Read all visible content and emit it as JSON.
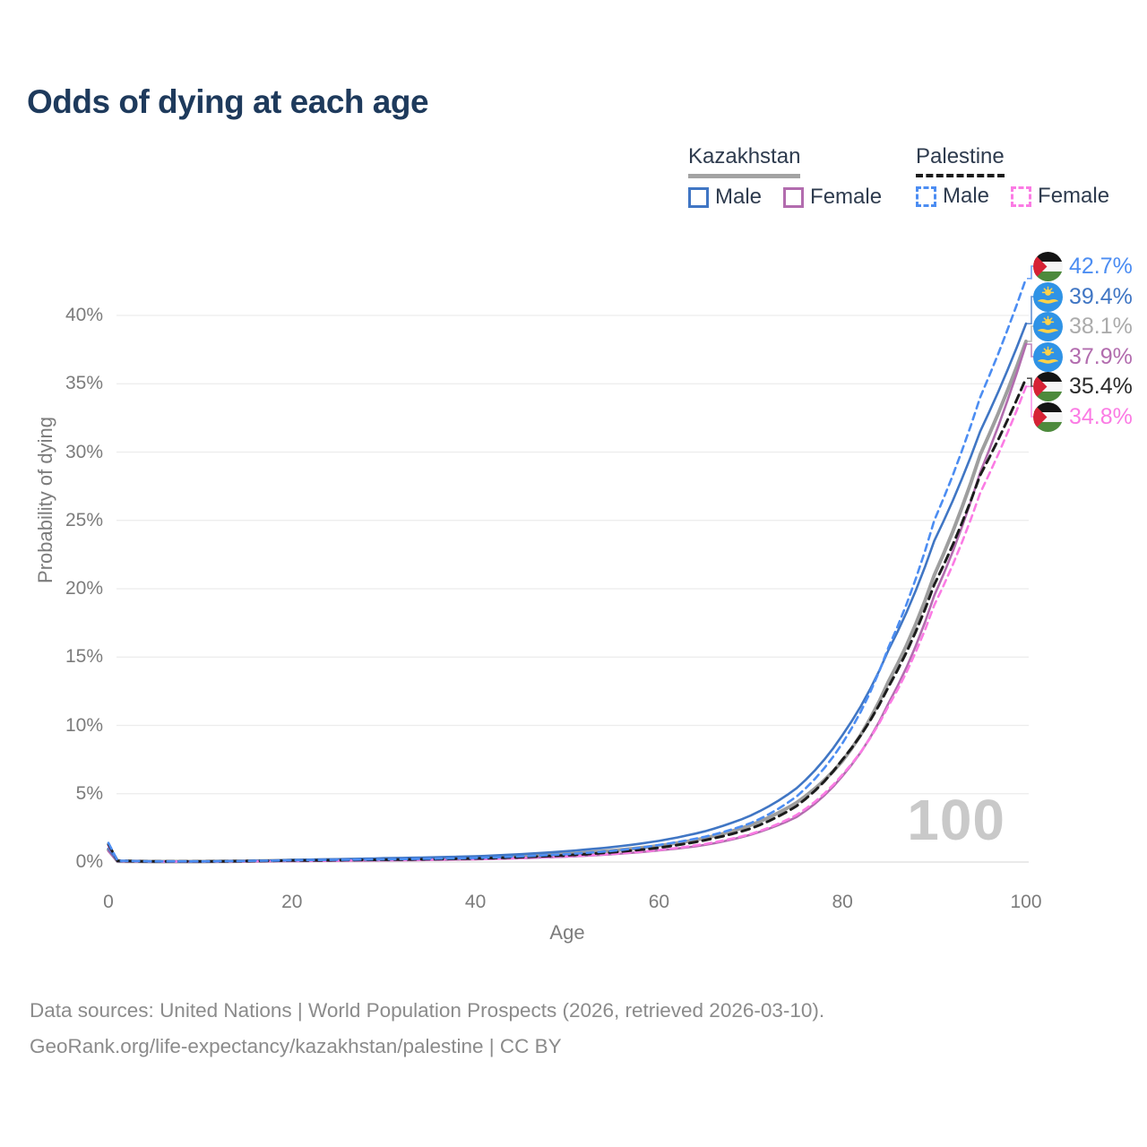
{
  "page": {
    "title": "Odds of dying at each age",
    "watermark": "100"
  },
  "footer": {
    "line1": "Data sources: United Nations | World Population Prospects (2026, retrieved 2026-03-10).",
    "line2": "GeoRank.org/life-expectancy/kazakhstan/palestine | CC BY"
  },
  "legend": {
    "groups": [
      {
        "label": "Kazakhstan",
        "style": "solid",
        "line_color": "#a3a3a3",
        "items": [
          {
            "label": "Male",
            "color": "#4076c4",
            "style": "solid"
          },
          {
            "label": "Female",
            "color": "#b26cae",
            "style": "solid"
          }
        ]
      },
      {
        "label": "Palestine",
        "style": "dashed",
        "line_color": "#1c1c1c",
        "items": [
          {
            "label": "Male",
            "color": "#4c8df2",
            "style": "dashed"
          },
          {
            "label": "Female",
            "color": "#fb7be4",
            "style": "dashed"
          }
        ]
      }
    ]
  },
  "chart_data": {
    "type": "line",
    "title": "Odds of dying at each age",
    "xlabel": "Age",
    "ylabel": "Probability of dying",
    "xlim": [
      0,
      100
    ],
    "ylim": [
      0,
      44
    ],
    "grid": true,
    "xticks": [
      {
        "value": 0,
        "label": "0"
      },
      {
        "value": 20,
        "label": "20"
      },
      {
        "value": 40,
        "label": "40"
      },
      {
        "value": 60,
        "label": "60"
      },
      {
        "value": 80,
        "label": "80"
      },
      {
        "value": 100,
        "label": "100"
      }
    ],
    "yticks": [
      {
        "value": 0,
        "label": "0%"
      },
      {
        "value": 5,
        "label": "5%"
      },
      {
        "value": 10,
        "label": "10%"
      },
      {
        "value": 15,
        "label": "15%"
      },
      {
        "value": 20,
        "label": "20%"
      },
      {
        "value": 25,
        "label": "25%"
      },
      {
        "value": 30,
        "label": "30%"
      },
      {
        "value": 35,
        "label": "35%"
      },
      {
        "value": 40,
        "label": "40%"
      }
    ],
    "series": [
      {
        "id": "kazakhstan-both",
        "name": "Kazakhstan (both sexes)",
        "flag": "kz",
        "color": "#9e9e9e",
        "dash": false,
        "width": 4,
        "slot": 2,
        "end_label": "38.1%",
        "label_color": "#ababab",
        "end_value": 38.1,
        "x": [
          0,
          1,
          5,
          10,
          20,
          30,
          40,
          50,
          55,
          60,
          65,
          70,
          75,
          80,
          85,
          90,
          95,
          100
        ],
        "y": [
          0.9,
          0.06,
          0.035,
          0.035,
          0.12,
          0.2,
          0.31,
          0.6,
          0.84,
          1.2,
          1.75,
          2.7,
          4.35,
          7.4,
          13.2,
          21.0,
          29.8,
          38.1
        ]
      },
      {
        "id": "kazakhstan-female",
        "name": "Kazakhstan Female",
        "flag": "kz",
        "color": "#b26cae",
        "dash": false,
        "width": 2.6,
        "slot": 3,
        "end_label": "37.9%",
        "label_color": "#b26cae",
        "end_value": 37.9,
        "x": [
          0,
          1,
          5,
          10,
          20,
          30,
          40,
          50,
          55,
          60,
          65,
          70,
          75,
          80,
          85,
          90,
          95,
          100
        ],
        "y": [
          0.8,
          0.05,
          0.03,
          0.03,
          0.07,
          0.12,
          0.2,
          0.4,
          0.58,
          0.85,
          1.25,
          2.0,
          3.3,
          6.3,
          11.6,
          19.5,
          28.5,
          37.9
        ]
      },
      {
        "id": "kazakhstan-male",
        "name": "Kazakhstan Male",
        "flag": "kz",
        "color": "#4076c4",
        "dash": false,
        "width": 2.6,
        "slot": 1,
        "end_label": "39.4%",
        "label_color": "#4076c4",
        "end_value": 39.4,
        "x": [
          0,
          1,
          5,
          10,
          20,
          30,
          40,
          50,
          55,
          60,
          65,
          70,
          75,
          80,
          85,
          90,
          95,
          100
        ],
        "y": [
          1.0,
          0.07,
          0.04,
          0.04,
          0.16,
          0.28,
          0.42,
          0.8,
          1.1,
          1.55,
          2.25,
          3.4,
          5.4,
          9.3,
          15.5,
          23.5,
          31.5,
          39.4
        ]
      },
      {
        "id": "palestine-female",
        "name": "Palestine Female",
        "flag": "ps",
        "color": "#fb7be4",
        "dash": true,
        "width": 2.6,
        "slot": 5,
        "end_label": "34.8%",
        "label_color": "#fb7be4",
        "end_value": 34.8,
        "x": [
          0,
          1,
          5,
          10,
          20,
          30,
          40,
          50,
          55,
          60,
          65,
          70,
          75,
          80,
          85,
          90,
          95,
          100
        ],
        "y": [
          1.2,
          0.08,
          0.04,
          0.04,
          0.08,
          0.13,
          0.21,
          0.42,
          0.6,
          0.88,
          1.32,
          2.05,
          3.45,
          6.4,
          11.4,
          18.8,
          27.0,
          34.8
        ]
      },
      {
        "id": "palestine-both",
        "name": "Palestine (both sexes)",
        "flag": "ps",
        "color": "#1c1c1c",
        "dash": true,
        "width": 3,
        "slot": 4,
        "end_label": "35.4%",
        "label_color": "#2b2b2b",
        "end_value": 35.4,
        "x": [
          0,
          1,
          5,
          10,
          20,
          30,
          40,
          50,
          55,
          60,
          65,
          70,
          75,
          80,
          85,
          90,
          95,
          100
        ],
        "y": [
          1.3,
          0.09,
          0.045,
          0.045,
          0.11,
          0.17,
          0.26,
          0.5,
          0.72,
          1.05,
          1.6,
          2.45,
          4.1,
          7.5,
          12.8,
          20.3,
          28.3,
          35.4
        ]
      },
      {
        "id": "palestine-male",
        "name": "Palestine Male",
        "flag": "ps",
        "color": "#4c8df2",
        "dash": true,
        "width": 2.6,
        "slot": 0,
        "end_label": "42.7%",
        "label_color": "#4c8df2",
        "end_value": 42.7,
        "x": [
          0,
          1,
          5,
          10,
          20,
          30,
          40,
          50,
          55,
          60,
          65,
          70,
          75,
          80,
          85,
          90,
          95,
          100
        ],
        "y": [
          1.4,
          0.1,
          0.05,
          0.05,
          0.13,
          0.2,
          0.3,
          0.58,
          0.82,
          1.25,
          1.85,
          2.85,
          4.8,
          8.7,
          15.7,
          25.0,
          34.0,
          42.7
        ]
      }
    ],
    "colors": {
      "title": "#1e3a5c",
      "axis_text": "#7c7c7c",
      "grid": "#ececec",
      "watermark": "#c9c9c9"
    }
  }
}
